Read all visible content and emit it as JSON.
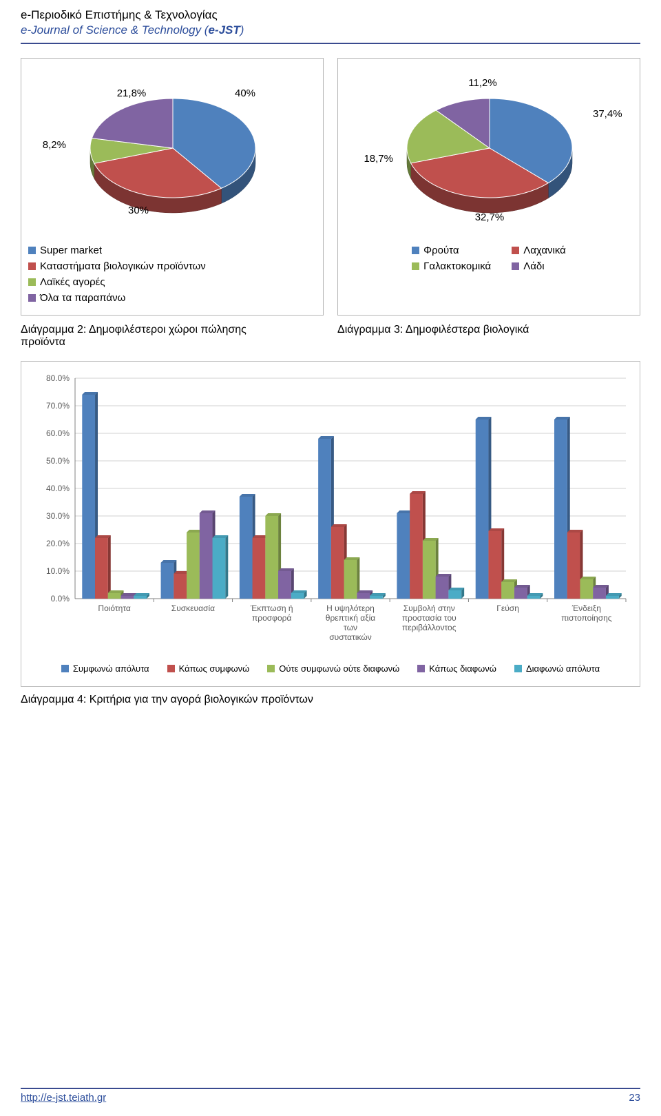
{
  "header": {
    "line1": "e-Περιοδικό Επιστήμης & Τεχνολογίας",
    "line2_prefix": "e-Journal of Science & Technology (",
    "line2_bold": "e-JST",
    "line2_suffix": ")"
  },
  "pie1": {
    "type": "pie",
    "background_color": "#ffffff",
    "slices": [
      {
        "label": "Super market",
        "value": 40.0,
        "color": "#4f81bd",
        "label_text": "40%"
      },
      {
        "label": "Καταστήματα βιολογικών προϊόντων",
        "value": 30.0,
        "color": "#c0504d",
        "label_text": "30%"
      },
      {
        "label": "Λαϊκές αγορές",
        "value": 8.2,
        "color": "#9bbb59",
        "label_text": "8,2%"
      },
      {
        "label": "Όλα τα παραπάνω",
        "value": 21.8,
        "color": "#8064a2",
        "label_text": "21,8%"
      }
    ],
    "legend_items": [
      {
        "label": "Super market",
        "color": "#4f81bd"
      },
      {
        "label": "Καταστήματα βιολογικών προϊόντων",
        "color": "#c0504d"
      },
      {
        "label": "Λαϊκές αγορές",
        "color": "#9bbb59"
      },
      {
        "label": "Όλα τα παραπάνω",
        "color": "#8064a2"
      }
    ]
  },
  "pie2": {
    "type": "pie",
    "background_color": "#ffffff",
    "slices": [
      {
        "label": "Φρούτα",
        "value": 37.4,
        "color": "#4f81bd",
        "label_text": "37,4%"
      },
      {
        "label": "Λαχανικά",
        "value": 32.7,
        "color": "#c0504d",
        "label_text": "32,7%"
      },
      {
        "label": "Γαλακτοκομικά",
        "value": 18.7,
        "color": "#9bbb59",
        "label_text": "18,7%"
      },
      {
        "label": "Λάδι",
        "value": 11.2,
        "color": "#8064a2",
        "label_text": "11,2%"
      }
    ],
    "legend_items": [
      {
        "label": "Φρούτα",
        "color": "#4f81bd"
      },
      {
        "label": "Λαχανικά",
        "color": "#c0504d"
      },
      {
        "label": "Γαλακτοκομικά",
        "color": "#9bbb59"
      },
      {
        "label": "Λάδι",
        "color": "#8064a2"
      }
    ]
  },
  "caption2": "Διάγραμμα 2: Δημοφιλέστεροι χώροι πώλησης",
  "caption2b": "προϊόντα",
  "caption3": "Διάγραμμα 3: Δημοφιλέστερα βιολογικά",
  "bar_chart": {
    "type": "bar",
    "ylim": [
      0,
      80
    ],
    "ytick_step": 10,
    "ytick_labels": [
      "0.0%",
      "10.0%",
      "20.0%",
      "30.0%",
      "40.0%",
      "50.0%",
      "60.0%",
      "70.0%",
      "80.0%"
    ],
    "grid_color": "#d0d0d0",
    "axis_color": "#808080",
    "label_fontsize": 12,
    "categories": [
      "Ποιότητα",
      "Συσκευασία",
      "Έκπτωση ή προσφορά",
      "Η υψηλότερη θρεπτική αξία των συστατικών",
      "Συμβολή στην προστασία του περιβάλλοντος",
      "Γεύση",
      "Ένδειξη πιστοποίησης"
    ],
    "series": [
      {
        "name": "Συμφωνώ απόλυτα",
        "color": "#4f81bd",
        "values": [
          74,
          13,
          37,
          58,
          31,
          65,
          65
        ]
      },
      {
        "name": "Κάπως συμφωνώ",
        "color": "#c0504d",
        "values": [
          22,
          9,
          22,
          26,
          38,
          24.5,
          24
        ]
      },
      {
        "name": "Ούτε συμφωνώ ούτε διαφωνώ",
        "color": "#9bbb59",
        "values": [
          2,
          24,
          30,
          14,
          21,
          6,
          7
        ]
      },
      {
        "name": "Κάπως διαφωνώ",
        "color": "#8064a2",
        "values": [
          1,
          31,
          10,
          2,
          8,
          4,
          4
        ]
      },
      {
        "name": "Διαφωνώ απόλυτα",
        "color": "#4bacc6",
        "values": [
          1,
          22,
          2,
          1,
          3,
          1,
          1
        ]
      }
    ]
  },
  "caption4": "Διάγραμμα 4: Κριτήρια για την αγορά βιολογικών προϊόντων",
  "footer": {
    "url": "http://e-jst.teiath.gr",
    "page": "23"
  }
}
